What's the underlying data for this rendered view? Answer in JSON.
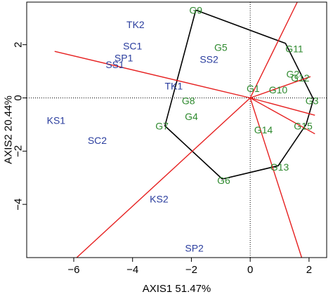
{
  "chart_data": {
    "type": "scatter",
    "title": "",
    "xlabel": "AXIS1 51.47%",
    "ylabel": "AXIS2 20.44%",
    "xlim": [
      -7.6,
      2.6
    ],
    "ylim": [
      -6.0,
      3.6
    ],
    "xticks": [
      -6,
      -4,
      -2,
      0,
      2
    ],
    "yticks": [
      -4,
      -2,
      0,
      2
    ],
    "grid": false,
    "reference_lines": {
      "x": 0,
      "y": 0,
      "style": "dotted"
    },
    "colors": {
      "environment": "#2a3d9e",
      "genotype": "#2f8a2f",
      "vector": "#e62020",
      "hull": "#000000"
    },
    "environments": [
      {
        "label": "TK2",
        "x": -3.9,
        "y": 2.75
      },
      {
        "label": "SC1",
        "x": -4.0,
        "y": 1.95
      },
      {
        "label": "SP1",
        "x": -4.3,
        "y": 1.5
      },
      {
        "label": "SS1",
        "x": -4.6,
        "y": 1.25
      },
      {
        "label": "SS2",
        "x": -1.4,
        "y": 1.45
      },
      {
        "label": "TK1",
        "x": -2.6,
        "y": 0.45
      },
      {
        "label": "KS1",
        "x": -6.6,
        "y": -0.85
      },
      {
        "label": "SC2",
        "x": -5.2,
        "y": -1.6
      },
      {
        "label": "KS2",
        "x": -3.1,
        "y": -3.8
      },
      {
        "label": "SP2",
        "x": -1.9,
        "y": -5.65
      }
    ],
    "genotypes": [
      {
        "label": "G9",
        "x": -1.85,
        "y": 3.3
      },
      {
        "label": "G5",
        "x": -1.0,
        "y": 1.9
      },
      {
        "label": "G11",
        "x": 1.5,
        "y": 1.85
      },
      {
        "label": "G2",
        "x": 1.45,
        "y": 0.9
      },
      {
        "label": "G12",
        "x": 1.7,
        "y": 0.75
      },
      {
        "label": "G1",
        "x": 0.1,
        "y": 0.35
      },
      {
        "label": "G10",
        "x": 0.95,
        "y": 0.3
      },
      {
        "label": "G3",
        "x": 2.1,
        "y": -0.1
      },
      {
        "label": "G8",
        "x": -2.1,
        "y": -0.1
      },
      {
        "label": "G4",
        "x": -2.0,
        "y": -0.7
      },
      {
        "label": "G7",
        "x": -3.0,
        "y": -1.05
      },
      {
        "label": "G14",
        "x": 0.45,
        "y": -1.2
      },
      {
        "label": "G15",
        "x": 1.8,
        "y": -1.05
      },
      {
        "label": "G13",
        "x": 1.0,
        "y": -2.6
      },
      {
        "label": "G6",
        "x": -0.9,
        "y": -3.1
      }
    ],
    "hull": [
      {
        "x": -1.85,
        "y": 3.3
      },
      {
        "x": 1.2,
        "y": 2.05
      },
      {
        "x": 2.15,
        "y": -0.05
      },
      {
        "x": 1.9,
        "y": -1.0
      },
      {
        "x": 0.95,
        "y": -2.55
      },
      {
        "x": -0.95,
        "y": -3.05
      },
      {
        "x": -2.9,
        "y": -1.05
      }
    ],
    "vectors": [
      {
        "x": -6.65,
        "y": 1.75
      },
      {
        "x": 1.6,
        "y": 3.6
      },
      {
        "x": 2.05,
        "y": 0.8
      },
      {
        "x": 2.2,
        "y": -0.65
      },
      {
        "x": 2.2,
        "y": -1.35
      },
      {
        "x": 1.75,
        "y": -6.0
      },
      {
        "x": -5.9,
        "y": -6.0
      }
    ]
  }
}
